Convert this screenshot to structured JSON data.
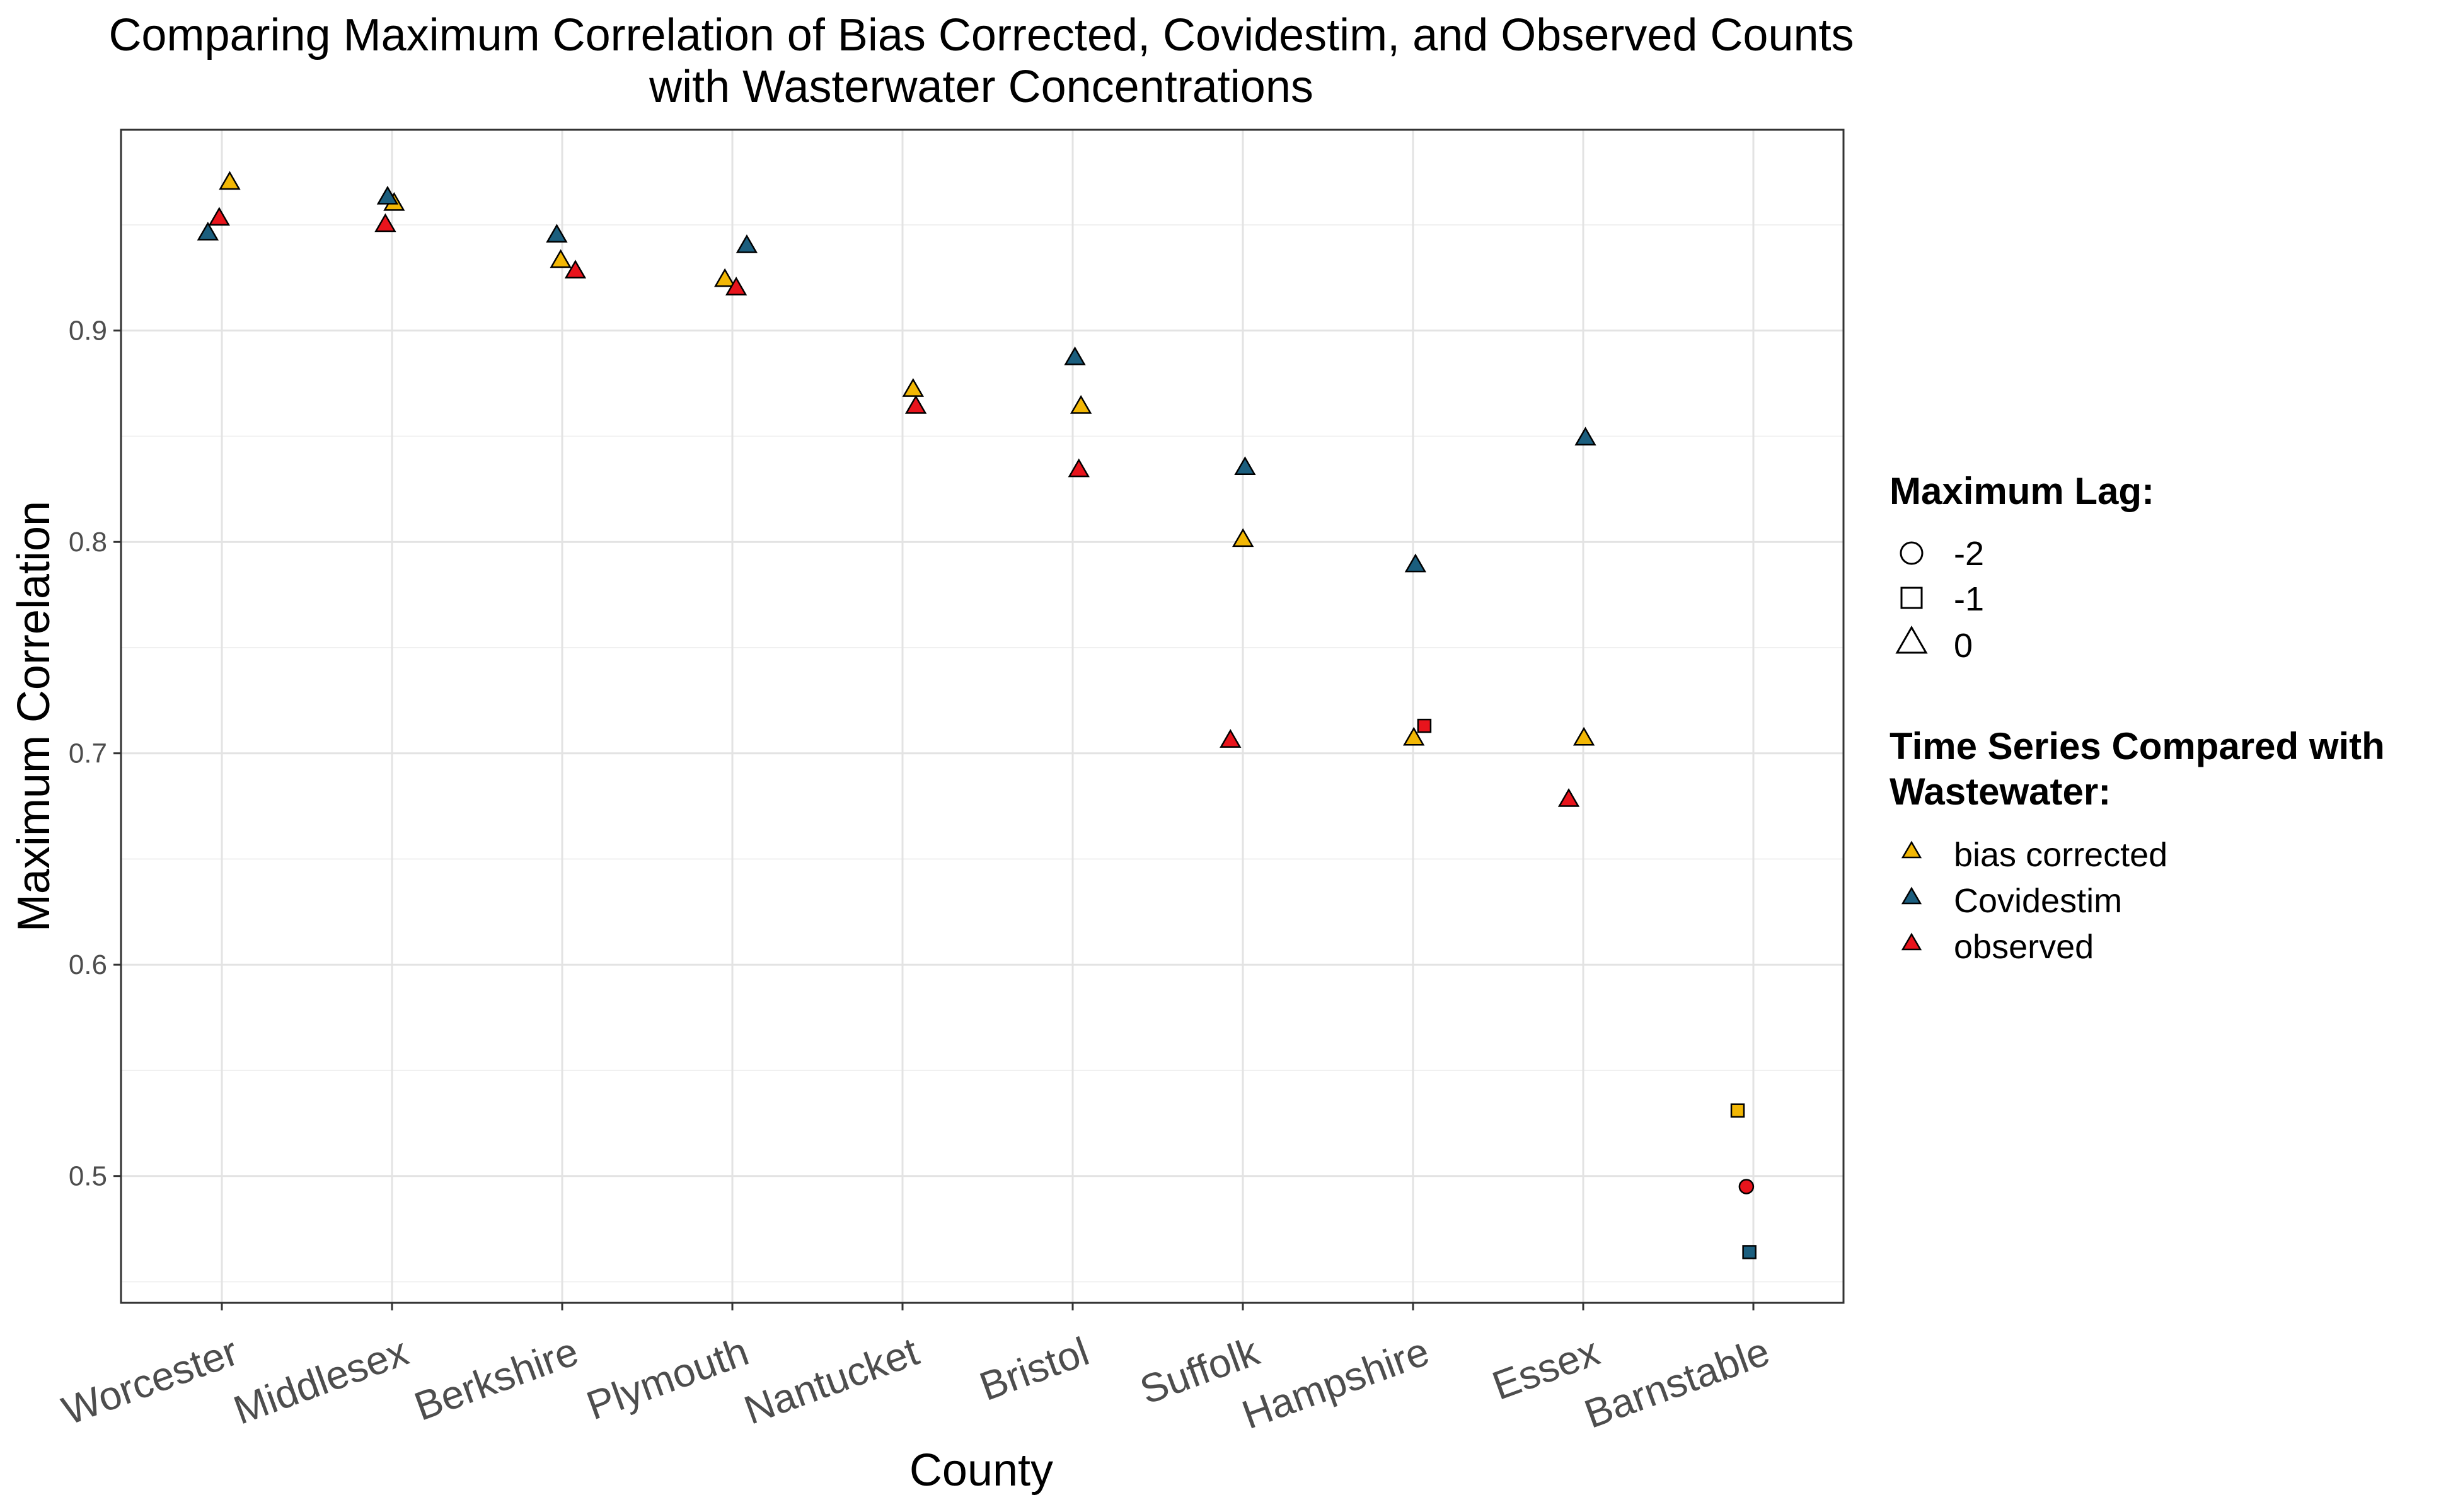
{
  "chart_data": {
    "type": "scatter",
    "title_line1": "Comparing Maximum Correlation of Bias Corrected, Covidestim, and Observed Counts",
    "title_line2": "with Wasterwater Concentrations",
    "xlabel": "County",
    "ylabel": "Maximum Correlation",
    "categories": [
      "Worcester",
      "Middlesex",
      "Berkshire",
      "Plymouth",
      "Nantucket",
      "Bristol",
      "Suffolk",
      "Hampshire",
      "Essex",
      "Barnstable"
    ],
    "ylim": [
      0.44,
      0.995
    ],
    "yticks": [
      0.5,
      0.6,
      0.7,
      0.8,
      0.9
    ],
    "ytick_labels": [
      "0.5",
      "0.6",
      "0.7",
      "0.8",
      "0.9"
    ],
    "grid": true,
    "legend_position": "right",
    "colors": {
      "bias corrected": "#f2b705",
      "Covidestim": "#1b5e7e",
      "observed": "#e8141c"
    },
    "shape_legend": {
      "title": "Maximum Lag:",
      "items": [
        {
          "label": "-2",
          "shape": "circle"
        },
        {
          "label": "-1",
          "shape": "square"
        },
        {
          "label": "0",
          "shape": "triangle"
        }
      ]
    },
    "color_legend": {
      "title_line1": "Time Series Compared with",
      "title_line2": "Wastewater:",
      "items": [
        "bias corrected",
        "Covidestim",
        "observed"
      ]
    },
    "series": [
      {
        "name": "bias corrected",
        "points": [
          {
            "county": "Worcester",
            "y": 0.97,
            "lag": 0
          },
          {
            "county": "Middlesex",
            "y": 0.96,
            "lag": 0
          },
          {
            "county": "Berkshire",
            "y": 0.933,
            "lag": 0
          },
          {
            "county": "Plymouth",
            "y": 0.924,
            "lag": 0
          },
          {
            "county": "Nantucket",
            "y": 0.872,
            "lag": 0
          },
          {
            "county": "Bristol",
            "y": 0.864,
            "lag": 0
          },
          {
            "county": "Suffolk",
            "y": 0.801,
            "lag": 0
          },
          {
            "county": "Hampshire",
            "y": 0.707,
            "lag": 0
          },
          {
            "county": "Essex",
            "y": 0.707,
            "lag": 0
          },
          {
            "county": "Barnstable",
            "y": 0.531,
            "lag": -1
          }
        ]
      },
      {
        "name": "Covidestim",
        "points": [
          {
            "county": "Worcester",
            "y": 0.946,
            "lag": 0
          },
          {
            "county": "Middlesex",
            "y": 0.963,
            "lag": 0
          },
          {
            "county": "Berkshire",
            "y": 0.945,
            "lag": 0
          },
          {
            "county": "Plymouth",
            "y": 0.94,
            "lag": 0
          },
          {
            "county": "Bristol",
            "y": 0.887,
            "lag": 0
          },
          {
            "county": "Suffolk",
            "y": 0.835,
            "lag": 0
          },
          {
            "county": "Hampshire",
            "y": 0.789,
            "lag": 0
          },
          {
            "county": "Essex",
            "y": 0.849,
            "lag": 0
          },
          {
            "county": "Barnstable",
            "y": 0.464,
            "lag": -1
          }
        ]
      },
      {
        "name": "observed",
        "points": [
          {
            "county": "Worcester",
            "y": 0.953,
            "lag": 0
          },
          {
            "county": "Middlesex",
            "y": 0.95,
            "lag": 0
          },
          {
            "county": "Berkshire",
            "y": 0.928,
            "lag": 0
          },
          {
            "county": "Plymouth",
            "y": 0.92,
            "lag": 0
          },
          {
            "county": "Nantucket",
            "y": 0.864,
            "lag": 0
          },
          {
            "county": "Bristol",
            "y": 0.834,
            "lag": 0
          },
          {
            "county": "Suffolk",
            "y": 0.706,
            "lag": 0
          },
          {
            "county": "Hampshire",
            "y": 0.713,
            "lag": -1
          },
          {
            "county": "Essex",
            "y": 0.678,
            "lag": 0
          },
          {
            "county": "Barnstable",
            "y": 0.495,
            "lag": -2
          }
        ]
      }
    ]
  }
}
